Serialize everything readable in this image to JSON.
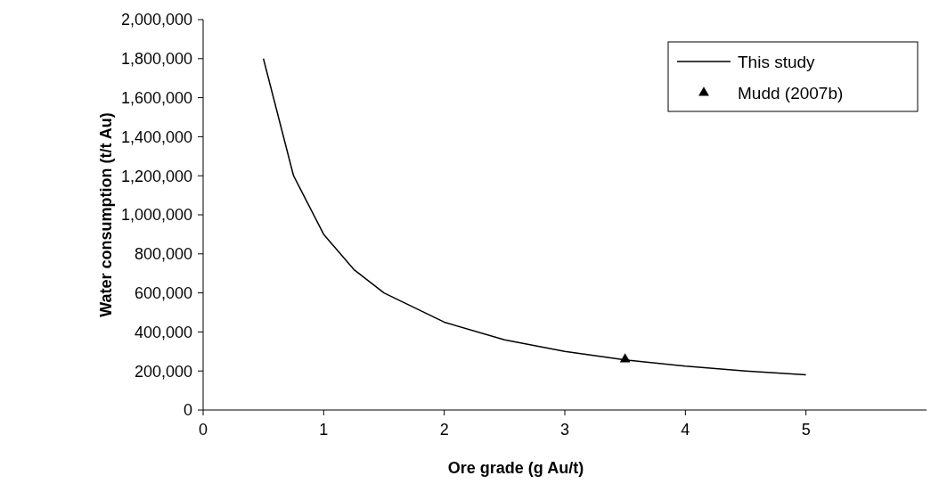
{
  "chart_data": {
    "type": "line",
    "xlabel": "Ore grade (g Au/t)",
    "ylabel": "Water consumption (t/t Au)",
    "xlim": [
      0,
      6
    ],
    "xticks": [
      0,
      1,
      2,
      3,
      4,
      5
    ],
    "ylim": [
      0,
      2000000
    ],
    "yticks": [
      0,
      {
        "value": 200000,
        "label": "200,000"
      },
      {
        "value": 400000,
        "label": "400,000"
      },
      {
        "value": 600000,
        "label": "600,000"
      },
      {
        "value": 800000,
        "label": "800,000"
      },
      {
        "value": 1000000,
        "label": "1,000,000"
      },
      {
        "value": 1200000,
        "label": "1,200,000"
      },
      {
        "value": 1400000,
        "label": "1,400,000"
      },
      {
        "value": 1600000,
        "label": "1,600,000"
      },
      {
        "value": 1800000,
        "label": "1,800,000"
      },
      {
        "value": 2000000,
        "label": "2,000,000"
      }
    ],
    "grid": false,
    "legend": "top right",
    "series": [
      {
        "name": "This study",
        "color": "#000000",
        "marker": "none",
        "line_style": "solid",
        "x": [
          0.5,
          0.75,
          1,
          1.25,
          1.5,
          2,
          2.5,
          3,
          3.5,
          4,
          4.5,
          5
        ],
        "values": [
          1800000,
          1200000,
          900000,
          720000,
          600000,
          450000,
          360000,
          300000,
          257000,
          225000,
          200000,
          180000
        ]
      },
      {
        "name": "Mudd (2007b)",
        "type": "scatter",
        "color": "#000000",
        "marker": "triangle",
        "x": [
          3.5
        ],
        "values": [
          260000
        ]
      }
    ]
  }
}
